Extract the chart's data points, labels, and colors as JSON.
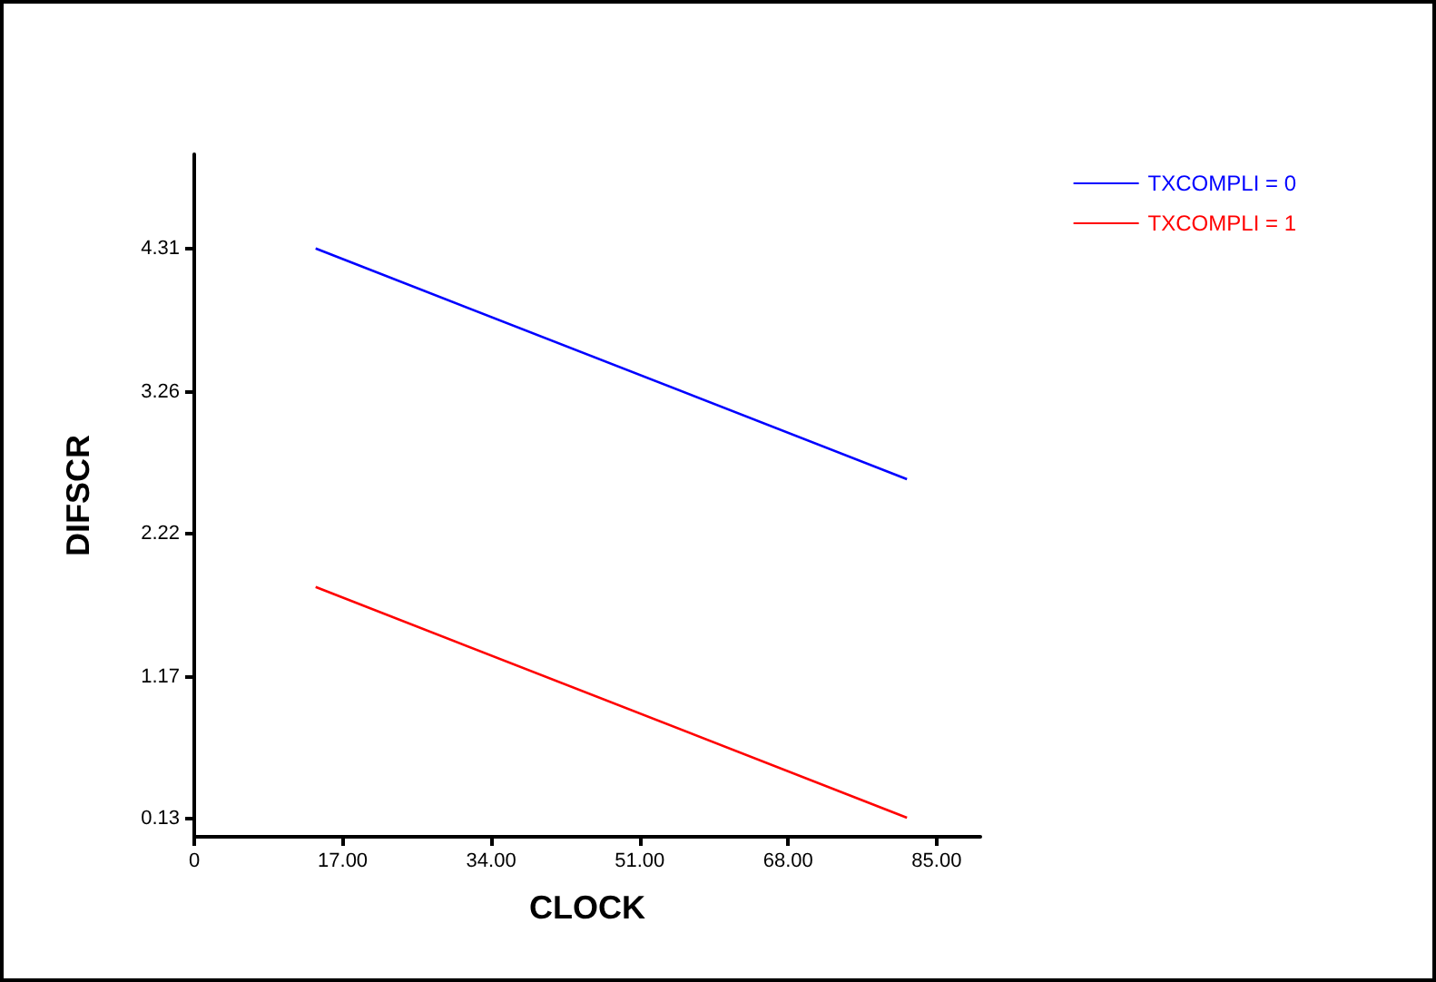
{
  "chart_data": {
    "type": "line",
    "xlabel": "CLOCK",
    "ylabel": "DIFSCR",
    "xlim": [
      0,
      90
    ],
    "xticks": [
      0,
      {
        "value": 17,
        "label": "17.00"
      },
      {
        "value": 34,
        "label": "34.00"
      },
      {
        "value": 51,
        "label": "51.00"
      },
      {
        "value": 68,
        "label": "68.00"
      },
      {
        "value": 85,
        "label": "85.00"
      }
    ],
    "ylim": [
      0,
      5
    ],
    "yticks": [
      0.13,
      1.17,
      2.22,
      3.26,
      4.31
    ],
    "x": [
      13.9,
      81.6
    ],
    "series": [
      {
        "name": "TXCOMPLI = 0",
        "color": "#0000ff",
        "values": [
          4.31,
          2.62
        ]
      },
      {
        "name": "TXCOMPLI = 1",
        "color": "#ff0000",
        "values": [
          1.83,
          0.14
        ]
      }
    ],
    "grid": false,
    "legend": "top right",
    "marker": "none",
    "line_style": "solid"
  }
}
